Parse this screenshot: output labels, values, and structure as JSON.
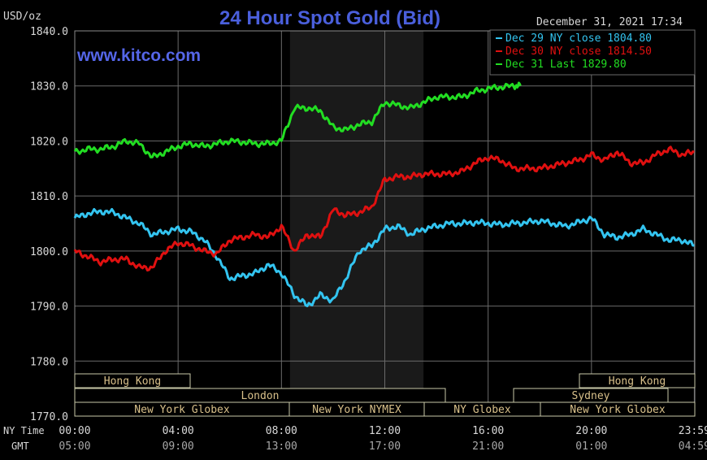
{
  "header": {
    "title": "24 Hour Spot Gold (Bid)",
    "unit": "USD/oz",
    "timestamp": "December 31, 2021 17:34",
    "watermark": "www.kitco.com"
  },
  "colors": {
    "title": "#4a5fdc",
    "watermark": "#5566e8",
    "dec29": "#33c4f0",
    "dec30": "#e01010",
    "dec31": "#22dd22",
    "grid": "#6a6a6a",
    "session_band": "#1a1a1a",
    "axis_text": "#d8d8d8",
    "bar_text": "#d8c08a"
  },
  "sessions": {
    "row1": [
      {
        "label": "Hong Kong"
      },
      {
        "label": "Hong Kong"
      }
    ],
    "row2": [
      {
        "label": "London"
      },
      {
        "label": "Sydney"
      }
    ],
    "row3": [
      {
        "label": "New York Globex"
      },
      {
        "label": "New York NYMEX"
      },
      {
        "label": "NY Globex"
      },
      {
        "label": "New York Globex"
      }
    ]
  },
  "axis_row_labels": {
    "ny": "NY Time",
    "gmt": "GMT"
  },
  "chart_data": {
    "type": "line",
    "title": "24 Hour Spot Gold (Bid)",
    "ylabel": "USD/oz",
    "ylim": [
      1770,
      1840
    ],
    "y_ticks": [
      "1840.0",
      "1830.0",
      "1820.0",
      "1810.0",
      "1800.0",
      "1790.0",
      "1780.0",
      "1770.0"
    ],
    "x_ticks_ny": [
      "00:00",
      "04:00",
      "08:00",
      "12:00",
      "16:00",
      "20:00",
      "23:59"
    ],
    "x_ticks_gmt": [
      "05:00",
      "09:00",
      "13:00",
      "17:00",
      "21:00",
      "01:00",
      "04:59"
    ],
    "grid": true,
    "legend_position": "top-right",
    "series": [
      {
        "name": "Dec 29 NY close 1804.80",
        "color": "#33c4f0",
        "x": [
          0,
          0.5,
          1,
          1.5,
          2,
          2.5,
          3,
          3.5,
          4,
          4.5,
          5,
          5.5,
          6,
          6.5,
          7,
          7.5,
          8,
          8.5,
          9,
          9.5,
          10,
          10.5,
          11,
          11.5,
          12,
          12.5,
          13,
          13.5,
          14,
          14.5,
          15,
          15.5,
          16,
          16.5,
          17,
          17.5,
          18,
          18.5,
          19,
          19.5,
          20,
          20.5,
          21,
          21.5,
          22,
          22.5,
          23,
          23.5,
          23.98
        ],
        "y": [
          1806,
          1806.8,
          1807.2,
          1807,
          1806,
          1805,
          1803,
          1803.5,
          1804,
          1803.5,
          1802,
          1799,
          1795,
          1795.5,
          1796,
          1797.5,
          1796,
          1792,
          1790,
          1792,
          1791,
          1795,
          1800,
          1801,
          1804,
          1804.5,
          1803,
          1804,
          1804.5,
          1805,
          1805,
          1805.2,
          1805,
          1804.8,
          1805,
          1805.2,
          1805.5,
          1805,
          1804.5,
          1805.2,
          1806,
          1803,
          1802.5,
          1803,
          1804,
          1803,
          1802,
          1802,
          1801
        ]
      },
      {
        "name": "Dec 30 NY close 1814.50",
        "color": "#e01010",
        "x": [
          0,
          0.5,
          1,
          1.5,
          2,
          2.5,
          3,
          3.5,
          4,
          4.5,
          5,
          5.5,
          6,
          6.5,
          7,
          7.5,
          8,
          8.5,
          9,
          9.5,
          10,
          10.5,
          11,
          11.5,
          12,
          12.5,
          13,
          13.5,
          14,
          14.5,
          15,
          15.5,
          16,
          16.5,
          17,
          17.5,
          18,
          18.5,
          19,
          19.5,
          20,
          20.5,
          21,
          21.5,
          22,
          22.5,
          23,
          23.5,
          23.98
        ],
        "y": [
          1800,
          1799,
          1798,
          1798.5,
          1798.5,
          1797,
          1797,
          1800,
          1801.5,
          1801,
          1800,
          1799.5,
          1802,
          1802.5,
          1803,
          1802.5,
          1804.5,
          1800,
          1803,
          1802.5,
          1807.5,
          1806.5,
          1807,
          1808,
          1813,
          1813.5,
          1813.5,
          1814,
          1814,
          1814,
          1814.5,
          1816,
          1817,
          1816.5,
          1815,
          1815,
          1815,
          1815.5,
          1816,
          1816.5,
          1817.5,
          1816.5,
          1818,
          1816,
          1816,
          1817.5,
          1818.5,
          1817.5,
          1818
        ]
      },
      {
        "name": "Dec 31 Last 1829.80",
        "color": "#22dd22",
        "x": [
          0,
          0.5,
          1,
          1.5,
          2,
          2.5,
          3,
          3.5,
          4,
          4.5,
          5,
          5.5,
          6,
          6.5,
          7,
          7.5,
          8,
          8.5,
          9,
          9.5,
          10,
          10.5,
          11,
          11.5,
          12,
          12.5,
          13,
          13.5,
          14,
          14.5,
          15,
          15.5,
          16,
          16.5,
          17,
          17.25
        ],
        "y": [
          1818,
          1818.5,
          1818.5,
          1819,
          1820,
          1819.5,
          1817,
          1818,
          1819,
          1819.5,
          1819,
          1819.5,
          1820,
          1819.8,
          1819.5,
          1819.5,
          1820,
          1826,
          1826,
          1825.5,
          1822.5,
          1822,
          1823,
          1823.5,
          1827,
          1826.5,
          1826,
          1827,
          1828,
          1828,
          1828,
          1829,
          1829.5,
          1829.8,
          1830,
          1830
        ]
      }
    ]
  }
}
